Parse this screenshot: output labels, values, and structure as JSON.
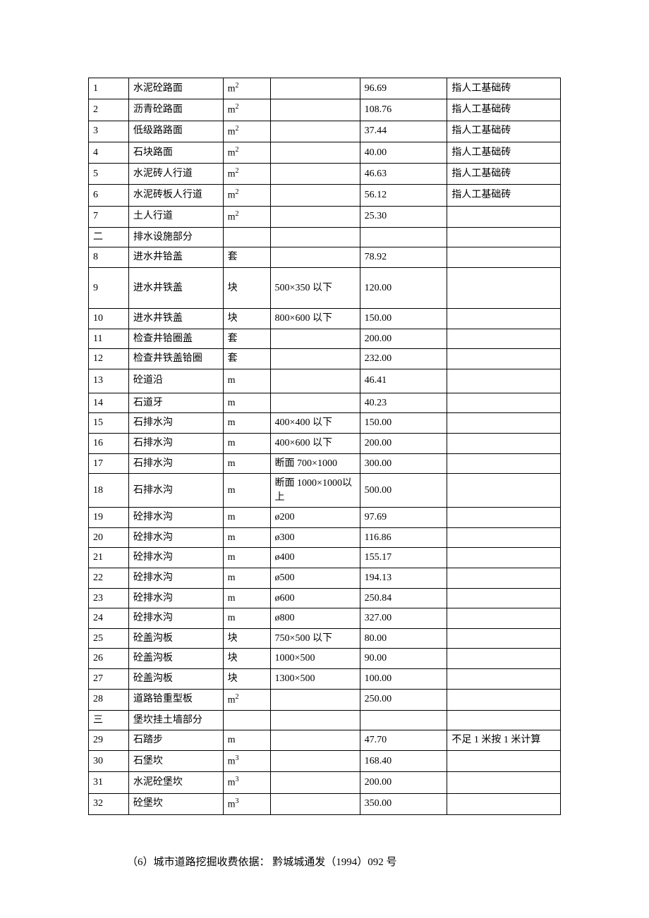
{
  "rows": [
    {
      "n": "1",
      "name": "水泥砼路面",
      "unit": "m²",
      "spec": "",
      "price": "96.69",
      "note": "指人工基础砖"
    },
    {
      "n": "2",
      "name": "沥青砼路面",
      "unit": "m²",
      "spec": "",
      "price": "108.76",
      "note": "指人工基础砖"
    },
    {
      "n": "3",
      "name": "低级路路面",
      "unit": "m²",
      "spec": "",
      "price": "37.44",
      "note": "指人工基础砖"
    },
    {
      "n": "4",
      "name": "石块路面",
      "unit": "m²",
      "spec": "",
      "price": "40.00",
      "note": "指人工基础砖"
    },
    {
      "n": "5",
      "name": "水泥砖人行道",
      "unit": "m²",
      "spec": "",
      "price": "46.63",
      "note": "指人工基础砖"
    },
    {
      "n": "6",
      "name": "水泥砖板人行道",
      "unit": "m²",
      "spec": "",
      "price": "56.12",
      "note": "指人工基础砖"
    },
    {
      "n": "7",
      "name": "土人行道",
      "unit": "m²",
      "spec": "",
      "price": "25.30",
      "note": ""
    },
    {
      "n": "二",
      "name": "排水设施部分",
      "unit": "",
      "spec": "",
      "price": "",
      "note": ""
    },
    {
      "n": "8",
      "name": "进水井铪盖",
      "unit": "套",
      "spec": "",
      "price": "78.92",
      "note": ""
    },
    {
      "n": "9",
      "name": "进水井铁盖",
      "unit": "块",
      "spec": "500×350 以下",
      "price": "120.00",
      "note": "",
      "tall": true
    },
    {
      "n": "10",
      "name": "进水井铁盖",
      "unit": "块",
      "spec": "800×600 以下",
      "price": "150.00",
      "note": ""
    },
    {
      "n": "11",
      "name": "检查井铪圈盖",
      "unit": "套",
      "spec": "",
      "price": "200.00",
      "note": ""
    },
    {
      "n": "12",
      "name": "检查井铁盖铪圈",
      "unit": "套",
      "spec": "",
      "price": "232.00",
      "note": ""
    },
    {
      "n": "13",
      "name": "砼道沿",
      "unit": "m",
      "spec": "",
      "price": "46.41",
      "note": "",
      "med": true
    },
    {
      "n": "14",
      "name": "石道牙",
      "unit": "m",
      "spec": "",
      "price": "40.23",
      "note": ""
    },
    {
      "n": "15",
      "name": "石排水沟",
      "unit": "m",
      "spec": "400×400 以下",
      "price": "150.00",
      "note": ""
    },
    {
      "n": "16",
      "name": "石排水沟",
      "unit": "m",
      "spec": "400×600 以下",
      "price": "200.00",
      "note": ""
    },
    {
      "n": "17",
      "name": "石排水沟",
      "unit": "m",
      "spec": "断面 700×1000",
      "price": "300.00",
      "note": ""
    },
    {
      "n": "18",
      "name": "石排水沟",
      "unit": "m",
      "spec": "断面 1000×1000以上",
      "price": "500.00",
      "note": ""
    },
    {
      "n": "19",
      "name": "砼排水沟",
      "unit": "m",
      "spec": "ø200",
      "price": "97.69",
      "note": ""
    },
    {
      "n": "20",
      "name": "砼排水沟",
      "unit": "m",
      "spec": "ø300",
      "price": "116.86",
      "note": ""
    },
    {
      "n": "21",
      "name": "砼排水沟",
      "unit": "m",
      "spec": "ø400",
      "price": "155.17",
      "note": ""
    },
    {
      "n": "22",
      "name": "砼排水沟",
      "unit": "m",
      "spec": "ø500",
      "price": "194.13",
      "note": ""
    },
    {
      "n": "23",
      "name": "砼排水沟",
      "unit": "m",
      "spec": "ø600",
      "price": "250.84",
      "note": ""
    },
    {
      "n": "24",
      "name": "砼排水沟",
      "unit": "m",
      "spec": "ø800",
      "price": "327.00",
      "note": ""
    },
    {
      "n": "25",
      "name": "砼盖沟板",
      "unit": "块",
      "spec": "750×500 以下",
      "price": "80.00",
      "note": ""
    },
    {
      "n": "26",
      "name": "砼盖沟板",
      "unit": "块",
      "spec": "1000×500",
      "price": "90.00",
      "note": ""
    },
    {
      "n": "27",
      "name": "砼盖沟板",
      "unit": "块",
      "spec": "1300×500",
      "price": "100.00",
      "note": ""
    },
    {
      "n": "28",
      "name": "道路铪重型板",
      "unit": "m²",
      "spec": "",
      "price": "250.00",
      "note": ""
    },
    {
      "n": "三",
      "name": "堡坎挂土墙部分",
      "unit": "",
      "spec": "",
      "price": "",
      "note": ""
    },
    {
      "n": "29",
      "name": "石踏步",
      "unit": "m",
      "spec": "",
      "price": "47.70",
      "note": "不足 1 米按 1 米计算"
    },
    {
      "n": "30",
      "name": "石堡坎",
      "unit": "m³",
      "spec": "",
      "price": "168.40",
      "note": ""
    },
    {
      "n": "31",
      "name": "水泥砼堡坎",
      "unit": "m³",
      "spec": "",
      "price": "200.00",
      "note": ""
    },
    {
      "n": "32",
      "name": "砼堡坎",
      "unit": "m³",
      "spec": "",
      "price": "350.00",
      "note": ""
    }
  ],
  "footer": "（6）城市道路挖掘收费依据：  黔城城通发（1994）092 号"
}
